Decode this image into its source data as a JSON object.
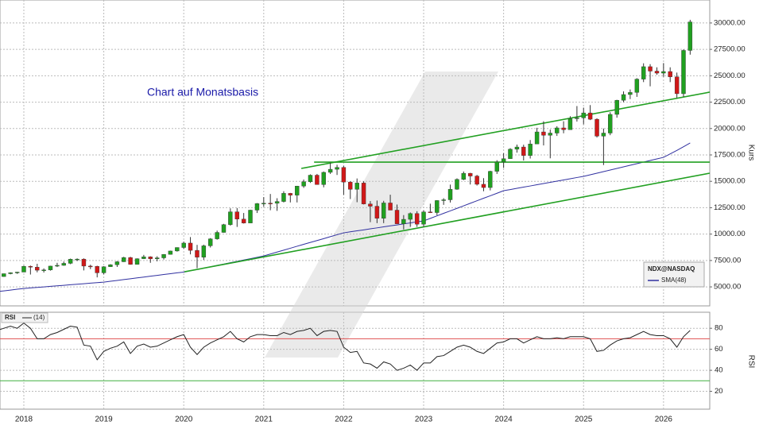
{
  "chart_data": {
    "type": "candlestick",
    "title": "Chart auf Monatsbasis",
    "instrument": "NDX@NASDAQ",
    "y_label": "Kurs",
    "colors": {
      "up": "#20a020",
      "down": "#d01818",
      "wick": "#333333"
    },
    "x": [
      2017.667,
      2017.75,
      2017.833,
      2017.917,
      2018,
      2018.083,
      2018.167,
      2018.25,
      2018.333,
      2018.417,
      2018.5,
      2018.583,
      2018.667,
      2018.75,
      2018.833,
      2018.917,
      2019,
      2019.083,
      2019.167,
      2019.25,
      2019.333,
      2019.417,
      2019.5,
      2019.583,
      2019.667,
      2019.75,
      2019.833,
      2019.917,
      2020,
      2020.083,
      2020.167,
      2020.25,
      2020.333,
      2020.417,
      2020.5,
      2020.583,
      2020.667,
      2020.75,
      2020.833,
      2020.917,
      2021,
      2021.083,
      2021.167,
      2021.25,
      2021.333,
      2021.417,
      2021.5,
      2021.583,
      2021.667,
      2021.75,
      2021.833,
      2021.917,
      2022,
      2022.083,
      2022.167,
      2022.25,
      2022.333,
      2022.417,
      2022.5,
      2022.583,
      2022.667,
      2022.75,
      2022.833,
      2022.917,
      2023,
      2023.083,
      2023.167,
      2023.25,
      2023.333,
      2023.417,
      2023.5,
      2023.583,
      2023.667,
      2023.75,
      2023.833,
      2023.917,
      2024,
      2024.083,
      2024.167,
      2024.25,
      2024.333,
      2024.417,
      2024.5,
      2024.583,
      2024.667,
      2024.75,
      2024.833,
      2024.917,
      2025,
      2025.083,
      2025.167,
      2025.25,
      2025.333,
      2025.417,
      2025.5,
      2025.583,
      2025.667,
      2025.75,
      2025.833,
      2025.917,
      2026,
      2026.083,
      2026.167,
      2026.25,
      2026.333
    ],
    "open": [
      5890,
      5980,
      6250,
      6340,
      6400,
      6950,
      6870,
      6580,
      6610,
      6970,
      7040,
      7230,
      7620,
      7630,
      6970,
      6950,
      6330,
      6910,
      7100,
      7380,
      7780,
      7130,
      7670,
      7850,
      7660,
      7750,
      8080,
      8400,
      8730,
      9150,
      8460,
      7810,
      8890,
      9550,
      10160,
      10900,
      12110,
      11420,
      11050,
      12270,
      12890,
      12930,
      12920,
      13090,
      13860,
      13690,
      14550,
      14960,
      15580,
      14690,
      15850,
      16140,
      16320,
      14930,
      14240,
      14840,
      12850,
      12640,
      11500,
      12950,
      12270,
      10970,
      11400,
      11950,
      10940,
      12100,
      12040,
      13180,
      13250,
      14250,
      15180,
      15760,
      15500,
      14720,
      14410,
      15950,
      16830,
      17140,
      18040,
      18250,
      17440,
      18540,
      19680,
      19360,
      19570,
      20060,
      19890,
      20930,
      21010,
      21480,
      20880,
      19280,
      19570,
      21340,
      22680,
      23220,
      23420,
      24680,
      25860,
      25440,
      25250,
      25400,
      24900,
      23300,
      27400
    ],
    "high": [
      6000,
      6260,
      6380,
      6430,
      7020,
      7020,
      7190,
      6750,
      7000,
      7280,
      7400,
      7680,
      7700,
      7700,
      7100,
      7000,
      6960,
      7150,
      7450,
      7850,
      7850,
      7700,
      8030,
      7900,
      7900,
      8100,
      8430,
      8740,
      9280,
      9720,
      8980,
      9000,
      9620,
      10330,
      10970,
      12440,
      12470,
      12000,
      12300,
      12940,
      13500,
      13800,
      13400,
      14060,
      13900,
      14570,
      15170,
      15660,
      15700,
      15930,
      16760,
      16570,
      16470,
      15000,
      15270,
      15000,
      13130,
      13180,
      13150,
      13730,
      12800,
      11800,
      12050,
      12170,
      12250,
      12880,
      13210,
      13400,
      14690,
      15280,
      15930,
      15800,
      15610,
      15300,
      16000,
      17000,
      17660,
      18140,
      18480,
      18470,
      18910,
      20070,
      20690,
      19900,
      20220,
      20690,
      21170,
      22130,
      21980,
      22220,
      20970,
      20000,
      21550,
      22720,
      23520,
      23700,
      24770,
      26180,
      26100,
      25800,
      26200,
      25800,
      25300,
      27500,
      30300
    ],
    "low": [
      5720,
      5960,
      6190,
      6230,
      6400,
      6170,
      6380,
      6360,
      6540,
      6880,
      7000,
      7150,
      7450,
      6560,
      6680,
      5900,
      6190,
      6900,
      6890,
      7360,
      7100,
      7120,
      7640,
      7280,
      7420,
      7590,
      8060,
      8340,
      8610,
      8080,
      6770,
      7550,
      8730,
      9470,
      10140,
      10800,
      10680,
      11000,
      11130,
      12000,
      12600,
      12260,
      12200,
      13000,
      13000,
      13000,
      14380,
      14850,
      14690,
      14430,
      15700,
      15600,
      13720,
      13320,
      13020,
      12810,
      11130,
      11040,
      11040,
      12270,
      10970,
      10440,
      10690,
      10680,
      10690,
      12000,
      11790,
      12770,
      12990,
      14200,
      15110,
      14700,
      14600,
      14060,
      14140,
      15700,
      16270,
      17150,
      17720,
      16970,
      17160,
      18620,
      18400,
      17180,
      19300,
      19550,
      19940,
      20660,
      20400,
      20800,
      19150,
      16540,
      19370,
      21030,
      22500,
      22790,
      23000,
      24400,
      24000,
      25100,
      24900,
      24400,
      22900,
      23000,
      27000
    ],
    "close": [
      5980,
      6250,
      6340,
      6400,
      6950,
      6870,
      6580,
      6610,
      6970,
      7040,
      7230,
      7620,
      7630,
      6970,
      6950,
      6330,
      6910,
      7100,
      7380,
      7780,
      7130,
      7670,
      7850,
      7660,
      7750,
      8080,
      8400,
      8730,
      9150,
      8460,
      7810,
      8890,
      9550,
      10160,
      10900,
      12110,
      11420,
      11050,
      12270,
      12890,
      12930,
      12920,
      13090,
      13860,
      13690,
      14550,
      14960,
      15580,
      14690,
      15850,
      16140,
      16320,
      14930,
      14240,
      14840,
      12850,
      12640,
      11500,
      12950,
      12270,
      10970,
      11400,
      11950,
      10940,
      12100,
      12040,
      13180,
      13250,
      14250,
      15180,
      15760,
      15500,
      14720,
      14410,
      15950,
      16830,
      17140,
      18040,
      18250,
      17440,
      18540,
      19680,
      19360,
      19570,
      20060,
      19890,
      20930,
      21010,
      21480,
      20880,
      19280,
      19570,
      21340,
      22680,
      23220,
      23420,
      24680,
      25860,
      25440,
      25250,
      25400,
      24900,
      23300,
      27400,
      30100
    ],
    "series": [
      {
        "name": "SMA(48)",
        "color": "#3030a0",
        "values": [
          4550,
          4620,
          4700,
          4780,
          4850,
          4900,
          4950,
          5000,
          5050,
          5100,
          5150,
          5200,
          5250,
          5300,
          5350,
          5400,
          5450,
          5530,
          5610,
          5690,
          5770,
          5850,
          5930,
          6010,
          6090,
          6170,
          6250,
          6330,
          6400,
          6530,
          6650,
          6780,
          6910,
          7040,
          7160,
          7290,
          7420,
          7550,
          7670,
          7800,
          7930,
          8110,
          8300,
          8480,
          8660,
          8850,
          9030,
          9210,
          9390,
          9570,
          9760,
          9940,
          10120,
          10220,
          10310,
          10400,
          10500,
          10590,
          10690,
          10780,
          10870,
          10970,
          11060,
          11160,
          11250,
          11490,
          11730,
          11970,
          12200,
          12440,
          12680,
          12920,
          13160,
          13400,
          13630,
          13870,
          14110,
          14220,
          14340,
          14450,
          14560,
          14680,
          14790,
          14900,
          15020,
          15130,
          15240,
          15360,
          15470,
          15620,
          15770,
          15920,
          16070,
          16220,
          16370,
          16520,
          16670,
          16820,
          16970,
          17120,
          17270,
          17600,
          17930,
          18280,
          18630
        ]
      }
    ],
    "trend_lines": [
      {
        "color": "#22a022",
        "x": [
          2021.47,
          2026.578
        ],
        "y": [
          16220,
          23450
        ]
      },
      {
        "color": "#22a022",
        "x": [
          2020.01,
          2026.578
        ],
        "y": [
          6430,
          15770
        ]
      },
      {
        "color": "#22a022",
        "x": [
          2021.63,
          2026.578
        ],
        "y": [
          16820,
          16820
        ]
      }
    ],
    "xlim": [
      2017.702,
      2026.578
    ],
    "xticks": [
      2018,
      2019,
      2020,
      2021,
      2022,
      2023,
      2024,
      2025,
      2026
    ],
    "ylim": [
      3200,
      31800
    ],
    "yticks": [
      {
        "value": 5000,
        "label": "5000.00"
      },
      {
        "value": 7500,
        "label": "7500.00"
      },
      {
        "value": 10000,
        "label": "10000.00"
      },
      {
        "value": 12500,
        "label": "12500.00"
      },
      {
        "value": 15000,
        "label": "15000.00"
      },
      {
        "value": 17500,
        "label": "17500.00"
      },
      {
        "value": 20000,
        "label": "20000.00"
      },
      {
        "value": 22500,
        "label": "22500.00"
      },
      {
        "value": 25000,
        "label": "25000.00"
      },
      {
        "value": 27500,
        "label": "27500.00"
      },
      {
        "value": 30000,
        "label": "30000.00"
      }
    ],
    "grid": true,
    "rsi": {
      "name": "RSI",
      "period": "(14)",
      "y_label": "RSI",
      "color": "#222222",
      "values": [
        78,
        80,
        82,
        80,
        85,
        80,
        70,
        70,
        74,
        76,
        79,
        82,
        81,
        64,
        63,
        50,
        58,
        61,
        63,
        67,
        56,
        63,
        65,
        62,
        63,
        66,
        69,
        72,
        74,
        62,
        55,
        62,
        66,
        69,
        72,
        77,
        70,
        67,
        72,
        74,
        74,
        73,
        73,
        76,
        74,
        77,
        78,
        80,
        73,
        77,
        78,
        77,
        62,
        57,
        58,
        47,
        46,
        42,
        48,
        46,
        40,
        42,
        45,
        40,
        47,
        47,
        53,
        54,
        58,
        62,
        64,
        62,
        58,
        56,
        61,
        66,
        67,
        70,
        70,
        66,
        69,
        72,
        70,
        70,
        71,
        70,
        72,
        72,
        72,
        70,
        58,
        59,
        64,
        68,
        70,
        71,
        74,
        77,
        74,
        73,
        73,
        70,
        62,
        72,
        78
      ],
      "ylim": [
        3,
        93
      ],
      "yticks": [
        20,
        40,
        60,
        80
      ],
      "levels": [
        {
          "value": 70,
          "color": "#e05050"
        },
        {
          "value": 30,
          "color": "#40b040"
        }
      ]
    }
  }
}
